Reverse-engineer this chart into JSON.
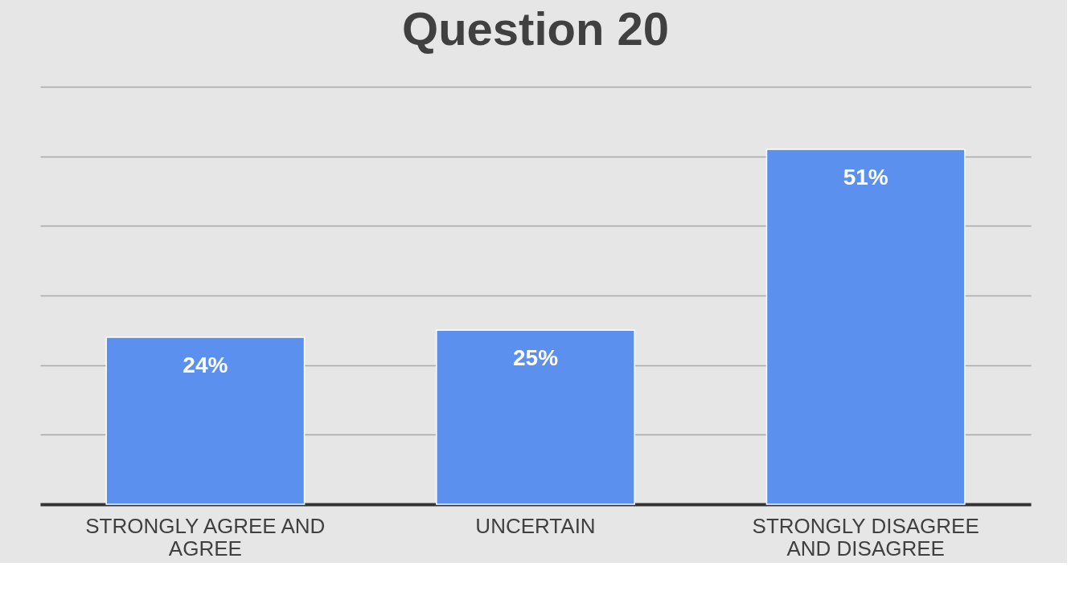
{
  "chart_data": {
    "type": "bar",
    "title": "Question 20",
    "categories": [
      "STRONGLY AGREE AND AGREE",
      "UNCERTAIN",
      "STRONGLY DISAGREE AND DISAGREE"
    ],
    "values": [
      24,
      25,
      51
    ],
    "color": "#5b90ee",
    "value_labels": [
      "24%",
      "25%",
      "51%"
    ],
    "ylim": [
      0,
      60
    ],
    "yticks": [
      {
        "value": 0,
        "label": null
      },
      {
        "value": 10,
        "label": null
      },
      {
        "value": 20,
        "label": null
      },
      {
        "value": 30,
        "label": null
      },
      {
        "value": 40,
        "label": null
      },
      {
        "value": 50,
        "label": null
      },
      {
        "value": 60,
        "label": null
      }
    ],
    "tick_labels": "x",
    "grid": "y"
  }
}
